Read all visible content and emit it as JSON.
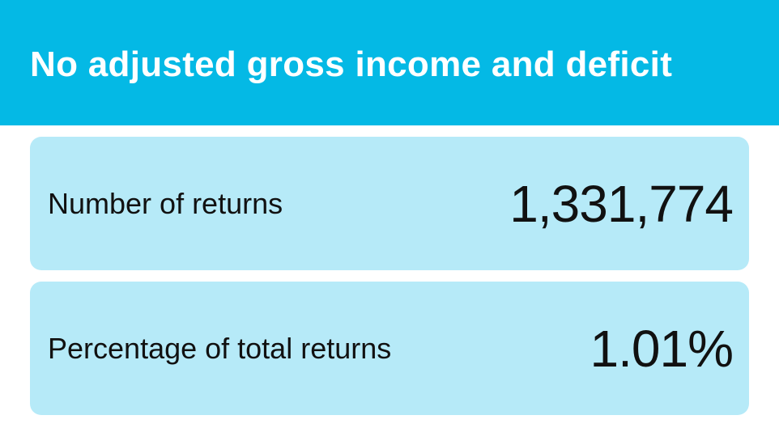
{
  "header": {
    "title": "No adjusted gross income and deficit"
  },
  "stats": [
    {
      "label": "Number of returns",
      "value": "1,331,774"
    },
    {
      "label": "Percentage of total returns",
      "value": "1.01%"
    }
  ],
  "colors": {
    "header_background": "#04b9e5",
    "card_background": "#b6eaf8",
    "title_text": "#ffffff",
    "body_text": "#111111"
  }
}
